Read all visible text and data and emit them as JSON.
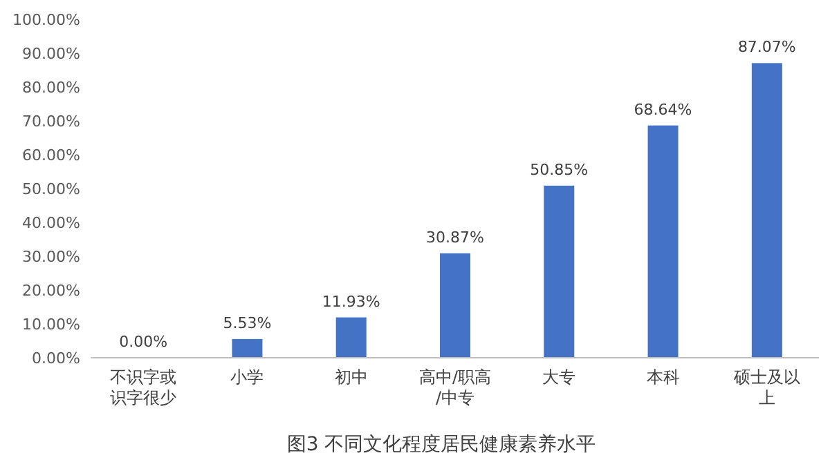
{
  "chart_data": {
    "type": "bar",
    "title": "图3  不同文化程度居民健康素养水平",
    "categories": [
      "不识字或识字很少",
      "小学",
      "初中",
      "高中/职高/中专",
      "大专",
      "本科",
      "硕士及以上"
    ],
    "values": [
      0,
      5.53,
      11.93,
      30.87,
      50.85,
      68.64,
      87.07
    ],
    "value_labels": [
      "0.00%",
      "5.53%",
      "11.93%",
      "30.87%",
      "50.85%",
      "68.64%",
      "87.07%"
    ],
    "color": "#4472c4",
    "ylim": [
      0,
      100
    ],
    "yticks": [
      {
        "value": 0,
        "label": "0.00%"
      },
      {
        "value": 10,
        "label": "10.00%"
      },
      {
        "value": 20,
        "label": "20.00%"
      },
      {
        "value": 30,
        "label": "30.00%"
      },
      {
        "value": 40,
        "label": "40.00%"
      },
      {
        "value": 50,
        "label": "50.00%"
      },
      {
        "value": 60,
        "label": "60.00%"
      },
      {
        "value": 70,
        "label": "70.00%"
      },
      {
        "value": 80,
        "label": "80.00%"
      },
      {
        "value": 90,
        "label": "90.00%"
      },
      {
        "value": 100,
        "label": "100.00%"
      }
    ],
    "grid": false
  }
}
